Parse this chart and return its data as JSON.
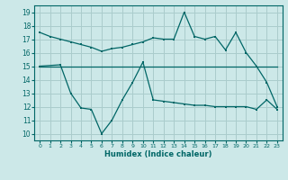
{
  "xlabel": "Humidex (Indice chaleur)",
  "bg_color": "#cce8e8",
  "grid_color": "#aacccc",
  "line_color": "#006666",
  "xlim": [
    -0.5,
    23.5
  ],
  "ylim": [
    9.5,
    19.5
  ],
  "yticks": [
    10,
    11,
    12,
    13,
    14,
    15,
    16,
    17,
    18,
    19
  ],
  "xticks": [
    0,
    1,
    2,
    3,
    4,
    5,
    6,
    7,
    8,
    9,
    10,
    11,
    12,
    13,
    14,
    15,
    16,
    17,
    18,
    19,
    20,
    21,
    22,
    23
  ],
  "series1_x": [
    0,
    1,
    2,
    3,
    4,
    5,
    6,
    7,
    8,
    9,
    10,
    11,
    12,
    13,
    14,
    15,
    16,
    17,
    18,
    19,
    20,
    21,
    22,
    23
  ],
  "series1_y": [
    17.5,
    17.2,
    17.0,
    16.8,
    16.6,
    16.4,
    16.1,
    16.3,
    16.4,
    16.6,
    16.8,
    17.1,
    17.0,
    17.0,
    19.0,
    17.2,
    17.0,
    17.2,
    16.2,
    17.5,
    16.0,
    15.0,
    13.8,
    12.0
  ],
  "series2_x": [
    0,
    1,
    2,
    3,
    4,
    5,
    6,
    7,
    8,
    9,
    10,
    11,
    12,
    13,
    14,
    15,
    16,
    17,
    18,
    19,
    20,
    21,
    22,
    23
  ],
  "series2_y": [
    15.0,
    15.0,
    15.0,
    15.0,
    15.0,
    15.0,
    15.0,
    15.0,
    15.0,
    15.0,
    15.0,
    15.0,
    15.0,
    15.0,
    15.0,
    15.0,
    15.0,
    15.0,
    15.0,
    15.0,
    15.0,
    15.0,
    15.0,
    15.0
  ],
  "series3_x": [
    0,
    2,
    3,
    4,
    5,
    6,
    7,
    8,
    9,
    10,
    11,
    12,
    13,
    14,
    15,
    16,
    17,
    18,
    19,
    20,
    21,
    22,
    23
  ],
  "series3_y": [
    15.0,
    15.1,
    13.0,
    11.9,
    11.8,
    10.0,
    11.0,
    12.5,
    13.8,
    15.3,
    12.5,
    12.4,
    12.3,
    12.2,
    12.1,
    12.1,
    12.0,
    12.0,
    12.0,
    12.0,
    11.8,
    12.5,
    11.8
  ]
}
